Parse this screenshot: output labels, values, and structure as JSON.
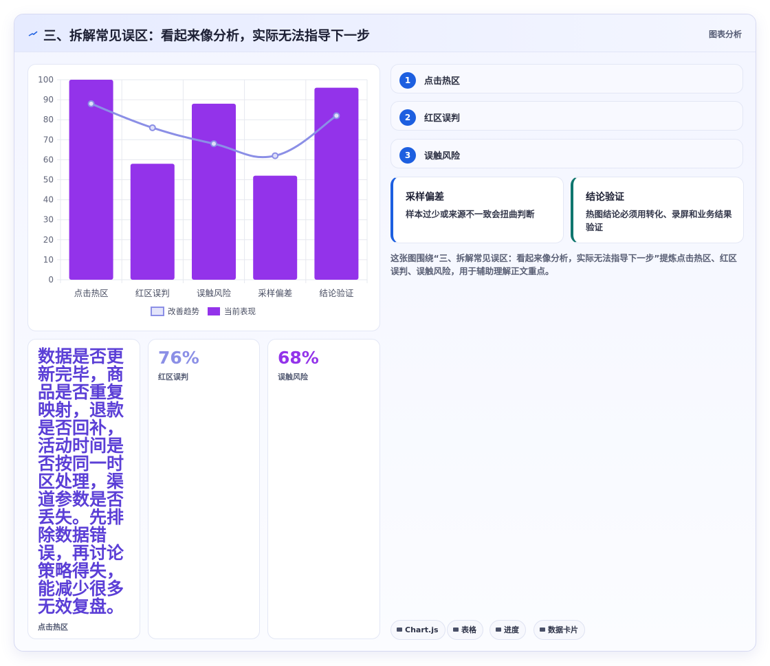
{
  "header": {
    "title": "三、拆解常见误区：看起来像分析，实际无法指导下一步",
    "tag": "图表分析"
  },
  "chart_data": {
    "type": "bar",
    "categories": [
      "点击热区",
      "红区误判",
      "误触风险",
      "采样偏差",
      "结论验证"
    ],
    "series": [
      {
        "name": "改善趋势",
        "type": "line",
        "color": "#8b8fe6",
        "values": [
          88,
          76,
          68,
          62,
          82
        ]
      },
      {
        "name": "当前表现",
        "type": "bar",
        "color": "#9333ea",
        "values": [
          100,
          58,
          88,
          52,
          96
        ]
      }
    ],
    "ylim": [
      0,
      100
    ],
    "yticks": [
      0,
      10,
      20,
      30,
      40,
      50,
      60,
      70,
      80,
      90,
      100
    ],
    "grid": true,
    "legend": "bottom"
  },
  "steps": [
    {
      "number": "1",
      "label": "点击热区"
    },
    {
      "number": "2",
      "label": "红区误判"
    },
    {
      "number": "3",
      "label": "误触风险"
    }
  ],
  "cards": [
    {
      "title": "采样偏差",
      "text": "样本过少或来源不一致会扭曲判断"
    },
    {
      "title": "结论验证",
      "text": "热图结论必须用转化、录屏和业务结果验证"
    }
  ],
  "summary": "这张图围绕“三、拆解常见误区：看起来像分析，实际无法指导下一步”提炼点击热区、红区误判、误触风险，用于辅助理解正文重点。",
  "stats": [
    {
      "value": "数据是否更新完毕，商品是否重复映射，退款是否回补，活动时间是否按同一时区处理，渠道参数是否丢失。先排除数据错误，再讨论策略得失，能减少很多无效复盘。",
      "label": "点击热区"
    },
    {
      "value": "76%",
      "label": "红区误判"
    },
    {
      "value": "68%",
      "label": "误触风险"
    }
  ],
  "tags": [
    "Chart.js",
    "表格",
    "进度",
    "数据卡片"
  ]
}
